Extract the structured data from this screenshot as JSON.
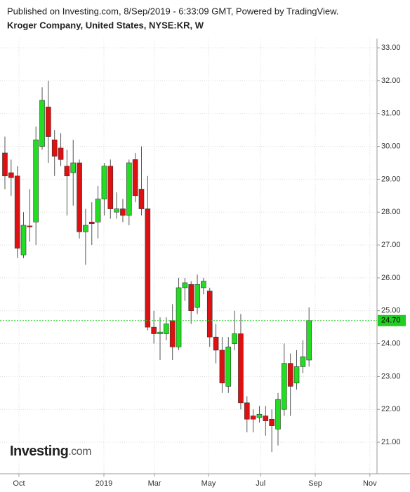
{
  "chart_data": {
    "type": "candlestick",
    "header": "Published on Investing.com, 8/Sep/2019 - 6:33:09 GMT, Powered by TradingView.",
    "title": "Kroger Company, United States, NYSE:KR, W",
    "logo": "Investing",
    "logo_suffix": ".com",
    "up_color": "#22dd22",
    "down_color": "#dd1111",
    "grid": true,
    "ylim": [
      20.04,
      33.28
    ],
    "yticks": [
      {
        "value": 21,
        "label": "21.00"
      },
      {
        "value": 22,
        "label": "22.00"
      },
      {
        "value": 23,
        "label": "23.00"
      },
      {
        "value": 24,
        "label": "24.00"
      },
      {
        "value": 25,
        "label": "25.00"
      },
      {
        "value": 26,
        "label": "26.00"
      },
      {
        "value": 27,
        "label": "27.00"
      },
      {
        "value": 28,
        "label": "28.00"
      },
      {
        "value": 29,
        "label": "29.00"
      },
      {
        "value": 30,
        "label": "30.00"
      },
      {
        "value": 31,
        "label": "31.00"
      },
      {
        "value": 32,
        "label": "32.00"
      },
      {
        "value": 33,
        "label": "33.00"
      }
    ],
    "xlim": [
      -0.79,
      59.95
    ],
    "xticks": [
      {
        "value": 2.26,
        "label": "Oct"
      },
      {
        "value": 15.95,
        "label": "2019"
      },
      {
        "value": 24.1,
        "label": "Mar"
      },
      {
        "value": 32.8,
        "label": "May"
      },
      {
        "value": 41.2,
        "label": "Jul"
      },
      {
        "value": 50,
        "label": "Sep"
      },
      {
        "value": 58.8,
        "label": "Nov"
      }
    ],
    "open": [
      29.8,
      29.2,
      29.1,
      26.7,
      27.58,
      27.7,
      30.0,
      31.2,
      30.2,
      29.95,
      29.4,
      29.2,
      29.5,
      27.4,
      27.7,
      27.7,
      28.4,
      29.4,
      28.0,
      28.1,
      27.9,
      29.6,
      28.7,
      28.1,
      24.5,
      24.3,
      24.3,
      24.7,
      23.9,
      25.7,
      25.8,
      25.1,
      25.7,
      25.6,
      24.2,
      23.8,
      22.7,
      24.0,
      24.3,
      22.2,
      21.8,
      21.75,
      21.8,
      21.7,
      21.4,
      22.0,
      23.4,
      22.8,
      23.3,
      23.5
    ],
    "high": [
      30.3,
      29.6,
      29.4,
      28.0,
      28.7,
      30.6,
      31.8,
      32.0,
      30.5,
      30.4,
      29.9,
      30.2,
      29.6,
      28.1,
      28.3,
      28.8,
      29.5,
      29.6,
      28.6,
      28.4,
      29.6,
      29.8,
      30.0,
      29.1,
      25.0,
      24.8,
      24.8,
      25.2,
      26.0,
      26.0,
      25.9,
      26.1,
      26.0,
      25.7,
      24.6,
      24.2,
      24.2,
      25.0,
      24.9,
      22.4,
      22.0,
      22.1,
      22.1,
      22.0,
      22.5,
      24.0,
      23.7,
      23.8,
      24.1,
      25.1
    ],
    "low": [
      28.7,
      28.5,
      26.6,
      26.6,
      27.1,
      27.0,
      29.9,
      29.5,
      29.1,
      29.4,
      27.9,
      28.2,
      27.2,
      26.4,
      27.0,
      27.2,
      27.9,
      27.8,
      27.8,
      27.7,
      27.6,
      28.3,
      27.9,
      24.4,
      24.0,
      23.5,
      24.1,
      23.5,
      23.8,
      25.3,
      24.6,
      24.9,
      25.5,
      23.9,
      23.4,
      22.5,
      22.5,
      23.8,
      22.0,
      21.3,
      21.3,
      21.6,
      21.2,
      20.7,
      20.9,
      21.8,
      21.8,
      22.6,
      23.1,
      23.3
    ],
    "close": [
      29.1,
      29.05,
      26.9,
      27.6,
      27.55,
      30.2,
      31.4,
      30.3,
      29.7,
      29.6,
      29.1,
      29.5,
      27.4,
      27.6,
      27.65,
      28.4,
      29.4,
      28.1,
      28.1,
      27.9,
      29.5,
      28.5,
      28.1,
      24.5,
      24.3,
      24.35,
      24.6,
      23.9,
      25.7,
      25.85,
      25.0,
      25.8,
      25.9,
      24.2,
      23.8,
      22.8,
      23.9,
      24.3,
      22.2,
      21.7,
      21.7,
      21.85,
      21.65,
      21.5,
      22.3,
      23.4,
      22.7,
      23.3,
      23.6,
      24.7
    ],
    "last_price": 24.7,
    "last_price_label": "24.70",
    "last_price_color": "#22cc22"
  }
}
